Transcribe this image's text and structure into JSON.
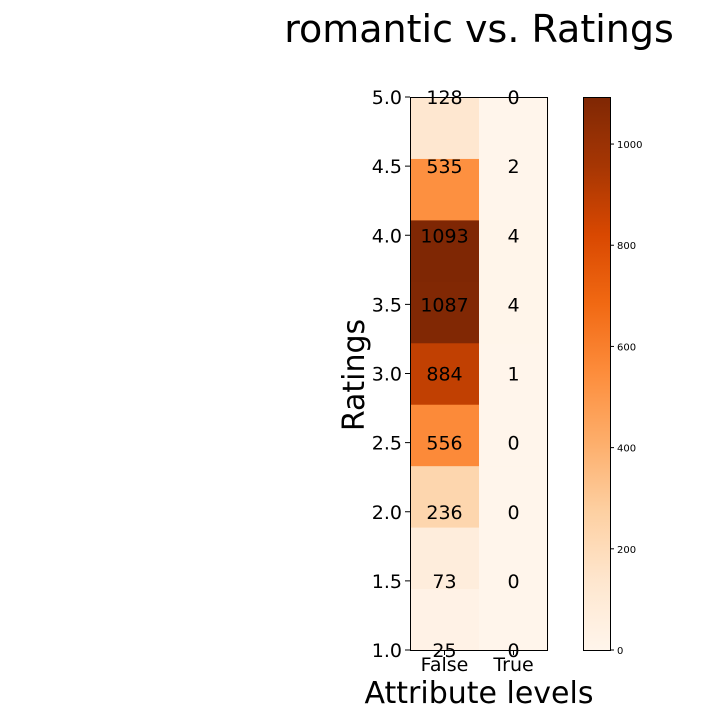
{
  "chart_data": {
    "type": "heatmap",
    "title": "romantic vs. Ratings",
    "xlabel": "Attribute levels",
    "ylabel": "Ratings",
    "x_categories": [
      "False",
      "True"
    ],
    "y_tick_labels": [
      "1.0",
      "1.5",
      "2.0",
      "2.5",
      "3.0",
      "3.5",
      "4.0",
      "4.5",
      "5.0"
    ],
    "ylim": [
      1.0,
      5.0
    ],
    "row_centers": [
      1.0,
      1.5,
      2.0,
      2.5,
      3.0,
      3.5,
      4.0,
      4.5,
      5.0
    ],
    "values_false": [
      25,
      73,
      236,
      556,
      884,
      1087,
      1093,
      535,
      128
    ],
    "values_true": [
      0,
      0,
      0,
      0,
      1,
      4,
      4,
      2,
      0
    ],
    "colorbar": {
      "colormap": "Oranges",
      "min": 0,
      "max": 1093,
      "ticks": [
        0,
        200,
        400,
        600,
        800,
        1000
      ],
      "tick_labels": [
        "0",
        "200",
        "400",
        "600",
        "800",
        "1000"
      ]
    },
    "grid": false,
    "legend": "none"
  }
}
